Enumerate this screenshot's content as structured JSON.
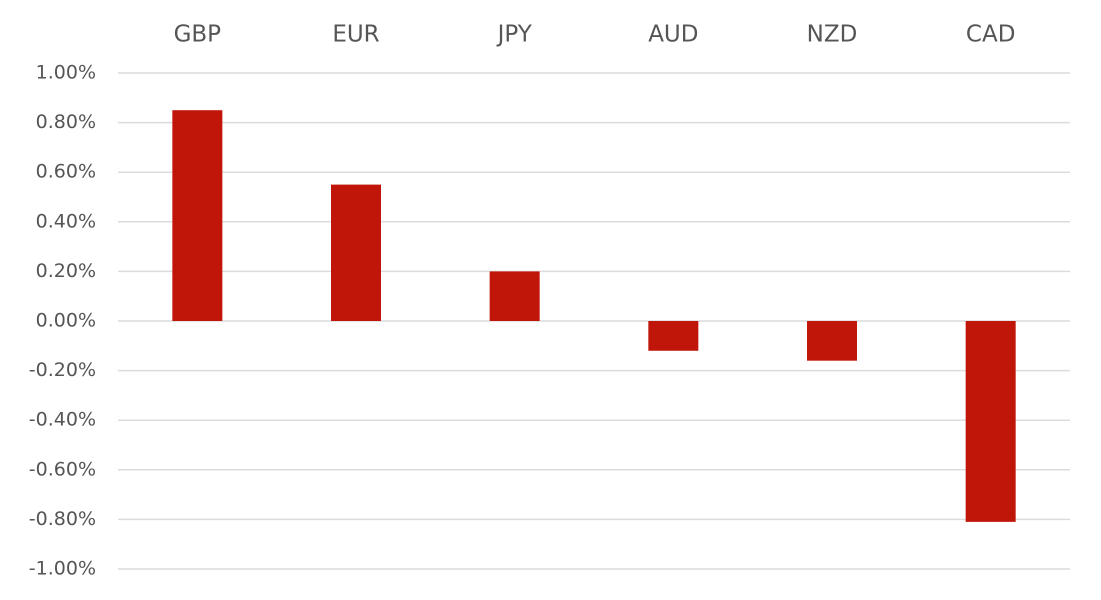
{
  "chart_data": {
    "type": "bar",
    "categories": [
      "GBP",
      "EUR",
      "JPY",
      "AUD",
      "NZD",
      "CAD"
    ],
    "values": [
      0.85,
      0.55,
      0.2,
      -0.12,
      -0.16,
      -0.81
    ],
    "color": "#c0160a",
    "ylim": [
      -1,
      1
    ],
    "yticks": [
      {
        "value": 1,
        "label": "1.00%"
      },
      {
        "value": 0.8,
        "label": "0.80%"
      },
      {
        "value": 0.6,
        "label": "0.60%"
      },
      {
        "value": 0.4,
        "label": "0.40%"
      },
      {
        "value": 0.2,
        "label": "0.20%"
      },
      {
        "value": 0,
        "label": "0.00%"
      },
      {
        "value": -0.2,
        "label": "-0.20%"
      },
      {
        "value": -0.4,
        "label": "-0.40%"
      },
      {
        "value": -0.6,
        "label": "-0.60%"
      },
      {
        "value": -0.8,
        "label": "-0.80%"
      },
      {
        "value": -1,
        "label": "-1.00%"
      }
    ],
    "grid": true
  }
}
